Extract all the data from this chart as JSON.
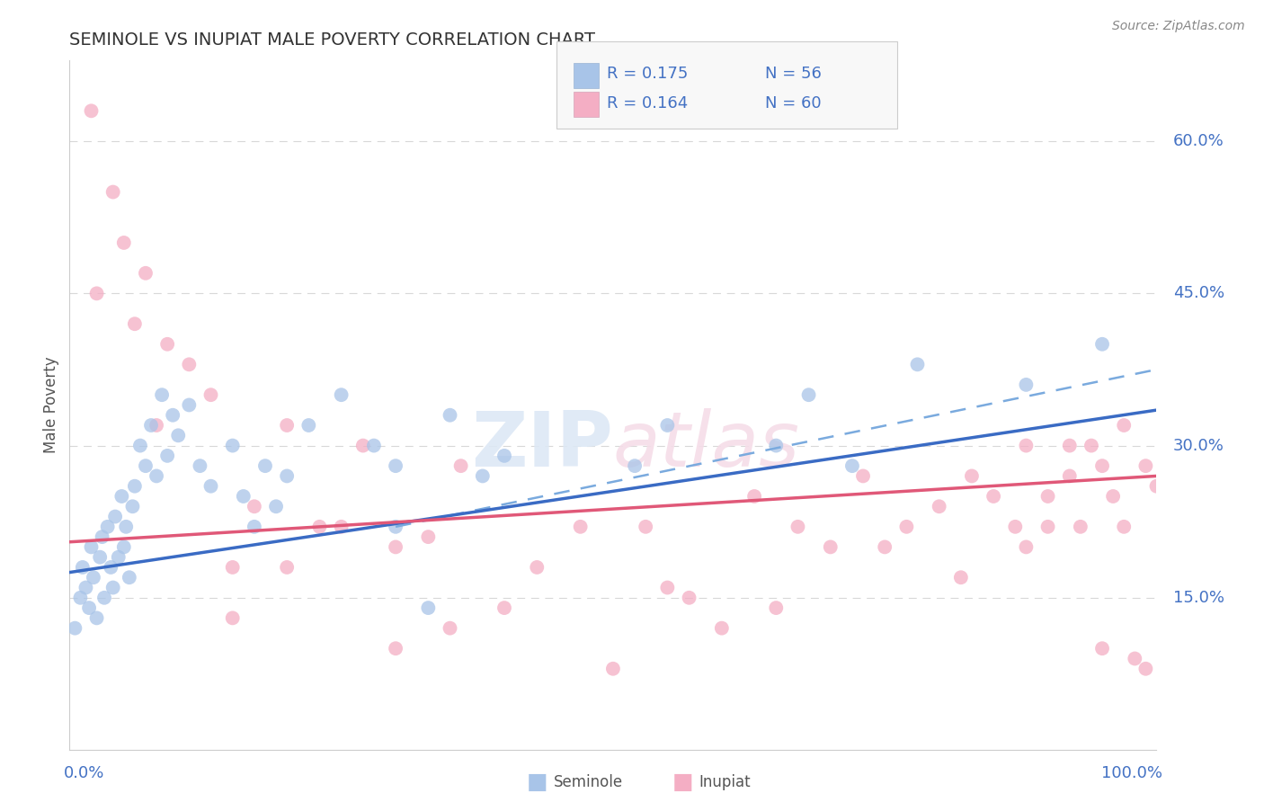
{
  "title": "SEMINOLE VS INUPIAT MALE POVERTY CORRELATION CHART",
  "source": "Source: ZipAtlas.com",
  "ylabel": "Male Poverty",
  "watermark_zip": "ZIP",
  "watermark_atlas": "atlas",
  "legend_r_seminole": "R = 0.175",
  "legend_n_seminole": "N = 56",
  "legend_r_inupiat": "R = 0.164",
  "legend_n_inupiat": "N = 60",
  "seminole_color": "#a8c4e8",
  "inupiat_color": "#f4aec4",
  "seminole_line_color": "#3a6bc4",
  "inupiat_line_color": "#e05878",
  "dashed_line_color": "#7aaade",
  "background_color": "#ffffff",
  "xlim": [
    0,
    100
  ],
  "ylim": [
    0,
    68
  ],
  "ytick_labels": [
    "15.0%",
    "30.0%",
    "45.0%",
    "60.0%"
  ],
  "ytick_values": [
    15,
    30,
    45,
    60
  ],
  "grid_color": "#d8d8d8",
  "seminole_x": [
    0.5,
    1.0,
    1.2,
    1.5,
    1.8,
    2.0,
    2.2,
    2.5,
    2.8,
    3.0,
    3.2,
    3.5,
    3.8,
    4.0,
    4.2,
    4.5,
    4.8,
    5.0,
    5.2,
    5.5,
    5.8,
    6.0,
    6.5,
    7.0,
    7.5,
    8.0,
    8.5,
    9.0,
    9.5,
    10.0,
    11.0,
    12.0,
    13.0,
    15.0,
    16.0,
    17.0,
    18.0,
    19.0,
    20.0,
    22.0,
    25.0,
    28.0,
    30.0,
    30.0,
    33.0,
    35.0,
    38.0,
    40.0,
    52.0,
    55.0,
    65.0,
    68.0,
    72.0,
    78.0,
    88.0,
    95.0
  ],
  "seminole_y": [
    12,
    15,
    18,
    16,
    14,
    20,
    17,
    13,
    19,
    21,
    15,
    22,
    18,
    16,
    23,
    19,
    25,
    20,
    22,
    17,
    24,
    26,
    30,
    28,
    32,
    27,
    35,
    29,
    33,
    31,
    34,
    28,
    26,
    30,
    25,
    22,
    28,
    24,
    27,
    32,
    35,
    30,
    22,
    28,
    14,
    33,
    27,
    29,
    28,
    32,
    30,
    35,
    28,
    38,
    36,
    40
  ],
  "inupiat_x": [
    2.0,
    4.0,
    5.0,
    7.0,
    9.0,
    11.0,
    13.0,
    15.0,
    17.0,
    20.0,
    23.0,
    27.0,
    30.0,
    33.0,
    36.0,
    40.0,
    43.0,
    47.0,
    50.0,
    53.0,
    57.0,
    60.0,
    63.0,
    67.0,
    70.0,
    73.0,
    77.0,
    80.0,
    83.0,
    85.0,
    87.0,
    88.0,
    90.0,
    92.0,
    93.0,
    94.0,
    95.0,
    96.0,
    97.0,
    98.0,
    99.0,
    100.0,
    2.5,
    6.0,
    8.0,
    15.0,
    20.0,
    25.0,
    30.0,
    35.0,
    55.0,
    65.0,
    75.0,
    82.0,
    88.0,
    90.0,
    92.0,
    95.0,
    97.0,
    99.0
  ],
  "inupiat_y": [
    63,
    55,
    50,
    47,
    40,
    38,
    35,
    18,
    24,
    32,
    22,
    30,
    10,
    21,
    28,
    14,
    18,
    22,
    8,
    22,
    15,
    12,
    25,
    22,
    20,
    27,
    22,
    24,
    27,
    25,
    22,
    30,
    25,
    27,
    22,
    30,
    28,
    25,
    22,
    9,
    28,
    26,
    45,
    42,
    32,
    13,
    18,
    22,
    20,
    12,
    16,
    14,
    20,
    17,
    20,
    22,
    30,
    10,
    32,
    8
  ],
  "seminole_line": [
    0,
    100,
    17.5,
    33.5
  ],
  "inupiat_line": [
    0,
    100,
    20.5,
    27.0
  ],
  "dashed_line": [
    30,
    100,
    22.0,
    37.5
  ]
}
